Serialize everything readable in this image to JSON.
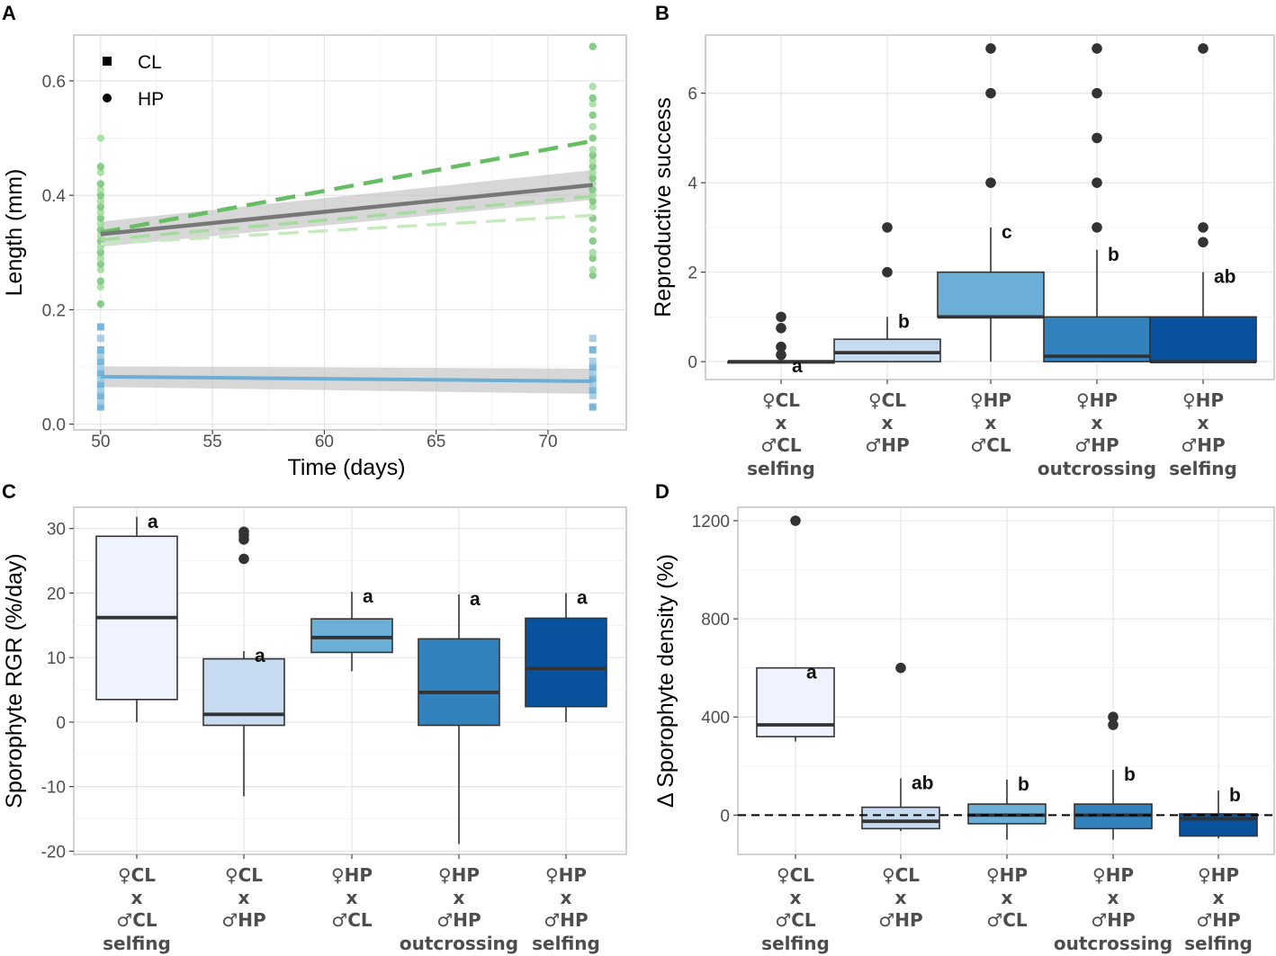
{
  "chart_data": [
    {
      "panel": "A",
      "type": "scatter",
      "xlabel": "Time (days)",
      "ylabel": "Length (mm)",
      "xlim": [
        48.8,
        73.5
      ],
      "ylim": [
        -0.01,
        0.68
      ],
      "xticks": [
        50,
        55,
        60,
        65,
        70
      ],
      "yticks": [
        0.0,
        0.2,
        0.4,
        0.6
      ],
      "ytick_labels": [
        "0.0",
        "0.2",
        "0.4",
        "0.6"
      ],
      "legend": [
        {
          "shape": "square",
          "label": "CL"
        },
        {
          "shape": "circle",
          "label": "HP"
        }
      ],
      "series": [
        {
          "name": "HP points day 50",
          "shape": "circle",
          "x": 50,
          "y": [
            0.21,
            0.24,
            0.25,
            0.27,
            0.28,
            0.29,
            0.3,
            0.31,
            0.32,
            0.33,
            0.34,
            0.35,
            0.36,
            0.37,
            0.38,
            0.39,
            0.4,
            0.41,
            0.42,
            0.44,
            0.45,
            0.5
          ]
        },
        {
          "name": "HP points day 72",
          "shape": "circle",
          "x": 72,
          "y": [
            0.26,
            0.27,
            0.29,
            0.3,
            0.32,
            0.34,
            0.36,
            0.38,
            0.39,
            0.4,
            0.41,
            0.42,
            0.43,
            0.44,
            0.45,
            0.46,
            0.47,
            0.48,
            0.5,
            0.52,
            0.54,
            0.56,
            0.57,
            0.59,
            0.66
          ]
        },
        {
          "name": "CL points day 50",
          "shape": "square",
          "x": 50,
          "y": [
            0.03,
            0.04,
            0.05,
            0.06,
            0.07,
            0.08,
            0.09,
            0.1,
            0.11,
            0.12,
            0.13,
            0.15,
            0.17
          ]
        },
        {
          "name": "CL points day 72",
          "shape": "square",
          "x": 72,
          "y": [
            0.03,
            0.05,
            0.06,
            0.07,
            0.08,
            0.09,
            0.1,
            0.11,
            0.13,
            0.15
          ]
        },
        {
          "name": "HP trend dark dashed",
          "style": "dashed",
          "x": [
            50,
            72
          ],
          "y": [
            0.335,
            0.495
          ]
        },
        {
          "name": "HP trend light dashed upper",
          "style": "dashed",
          "x": [
            50,
            72
          ],
          "y": [
            0.322,
            0.398
          ]
        },
        {
          "name": "HP trend light dashed lower",
          "style": "dashed",
          "x": [
            50,
            72
          ],
          "y": [
            0.315,
            0.365
          ]
        },
        {
          "name": "HP mean fit",
          "style": "solid",
          "x": [
            50,
            72
          ],
          "y": [
            0.332,
            0.418
          ],
          "ci": [
            0.022,
            0.026
          ]
        },
        {
          "name": "CL mean fit",
          "style": "solid",
          "x": [
            50,
            72
          ],
          "y": [
            0.083,
            0.075
          ],
          "ci": [
            0.018,
            0.022
          ]
        }
      ]
    },
    {
      "panel": "B",
      "type": "box",
      "ylabel": "Reproductive success",
      "ylim": [
        -0.4,
        7.3
      ],
      "yticks": [
        0,
        2,
        4,
        6
      ],
      "categories": [
        {
          "female": "♀CL",
          "x": "x",
          "male": "♂CL",
          "note": "selfing"
        },
        {
          "female": "♀CL",
          "x": "x",
          "male": "♂HP",
          "note": ""
        },
        {
          "female": "♀HP",
          "x": "x",
          "male": "♂CL",
          "note": ""
        },
        {
          "female": "♀HP",
          "x": "x",
          "male": "♂HP",
          "note": "outcrossing"
        },
        {
          "female": "♀HP",
          "x": "x",
          "male": "♂HP",
          "note": "selfing"
        }
      ],
      "boxes": [
        {
          "q1": 0,
          "median": 0,
          "q3": 0,
          "whisker_low": 0,
          "whisker_high": 0,
          "outliers": [
            0.15,
            0.33,
            0.75,
            1.0
          ],
          "letter": "a",
          "color": "#eff3ff"
        },
        {
          "q1": 0,
          "median": 0.2,
          "q3": 0.5,
          "whisker_low": 0,
          "whisker_high": 1.0,
          "outliers": [
            2,
            3
          ],
          "letter": "b",
          "color": "#c6dbef"
        },
        {
          "q1": 1.0,
          "median": 1.0,
          "q3": 2.0,
          "whisker_low": 0,
          "whisker_high": 3.0,
          "outliers": [
            4,
            6,
            7
          ],
          "letter": "c",
          "color": "#6baed6"
        },
        {
          "q1": 0,
          "median": 0.12,
          "q3": 1.0,
          "whisker_low": 0,
          "whisker_high": 2.5,
          "outliers": [
            3,
            4,
            5,
            6,
            7
          ],
          "letter": "b",
          "color": "#3182bd"
        },
        {
          "q1": 0,
          "median": 0,
          "q3": 1.0,
          "whisker_low": 0,
          "whisker_high": 2.0,
          "outliers": [
            2.67,
            3,
            7
          ],
          "letter": "ab",
          "color": "#08519c"
        }
      ]
    },
    {
      "panel": "C",
      "type": "box",
      "ylabel": "Sporophyte RGR (%/day)",
      "ylim": [
        -20.5,
        33.3
      ],
      "yticks": [
        -20,
        -10,
        0,
        10,
        20,
        30
      ],
      "categories": [
        {
          "female": "♀CL",
          "x": "x",
          "male": "♂CL",
          "note": "selfing"
        },
        {
          "female": "♀CL",
          "x": "x",
          "male": "♂HP",
          "note": ""
        },
        {
          "female": "♀HP",
          "x": "x",
          "male": "♂CL",
          "note": ""
        },
        {
          "female": "♀HP",
          "x": "x",
          "male": "♂HP",
          "note": "outcrossing"
        },
        {
          "female": "♀HP",
          "x": "x",
          "male": "♂HP",
          "note": "selfing"
        }
      ],
      "boxes": [
        {
          "q1": 3.5,
          "median": 16.2,
          "q3": 28.8,
          "whisker_low": 0,
          "whisker_high": 31.8,
          "outliers": [],
          "letter": "a",
          "color": "#eff3ff"
        },
        {
          "q1": -0.5,
          "median": 1.2,
          "q3": 9.8,
          "whisker_low": -11.5,
          "whisker_high": 11.0,
          "outliers": [
            25.3,
            28.3,
            29.0,
            29.5
          ],
          "letter": "a",
          "color": "#c6dbef"
        },
        {
          "q1": 10.8,
          "median": 13.1,
          "q3": 16.0,
          "whisker_low": 7.9,
          "whisker_high": 20.2,
          "outliers": [],
          "letter": "a",
          "color": "#6baed6"
        },
        {
          "q1": -0.5,
          "median": 4.6,
          "q3": 12.9,
          "whisker_low": -18.9,
          "whisker_high": 19.8,
          "outliers": [],
          "letter": "a",
          "color": "#3182bd"
        },
        {
          "q1": 2.4,
          "median": 8.3,
          "q3": 16.1,
          "whisker_low": 0,
          "whisker_high": 20.0,
          "outliers": [],
          "letter": "a",
          "color": "#08519c"
        }
      ]
    },
    {
      "panel": "D",
      "type": "box",
      "ylabel": "Δ Sporophyte density (%)",
      "ylim": [
        -160,
        1255
      ],
      "yticks": [
        0,
        400,
        800,
        1200
      ],
      "reference_line": 0,
      "categories": [
        {
          "female": "♀CL",
          "x": "x",
          "male": "♂CL",
          "note": "selfing"
        },
        {
          "female": "♀CL",
          "x": "x",
          "male": "♂HP",
          "note": ""
        },
        {
          "female": "♀HP",
          "x": "x",
          "male": "♂CL",
          "note": ""
        },
        {
          "female": "♀HP",
          "x": "x",
          "male": "♂HP",
          "note": "outcrossing"
        },
        {
          "female": "♀HP",
          "x": "x",
          "male": "♂HP",
          "note": "selfing"
        }
      ],
      "boxes": [
        {
          "q1": 320,
          "median": 368,
          "q3": 600,
          "whisker_low": 300,
          "whisker_high": 600,
          "outliers": [
            1200
          ],
          "letter": "a",
          "color": "#eff3ff"
        },
        {
          "q1": -55,
          "median": -25,
          "q3": 32,
          "whisker_low": -65,
          "whisker_high": 150,
          "outliers": [
            600
          ],
          "letter": "ab",
          "color": "#c6dbef"
        },
        {
          "q1": -35,
          "median": 0,
          "q3": 45,
          "whisker_low": -100,
          "whisker_high": 145,
          "outliers": [],
          "letter": "b",
          "color": "#6baed6"
        },
        {
          "q1": -55,
          "median": 0,
          "q3": 45,
          "whisker_low": -100,
          "whisker_high": 185,
          "outliers": [
            368,
            400
          ],
          "letter": "b",
          "color": "#3182bd"
        },
        {
          "q1": -85,
          "median": -15,
          "q3": 5,
          "whisker_low": -95,
          "whisker_high": 100,
          "outliers": [],
          "letter": "b",
          "color": "#08519c"
        }
      ]
    }
  ]
}
